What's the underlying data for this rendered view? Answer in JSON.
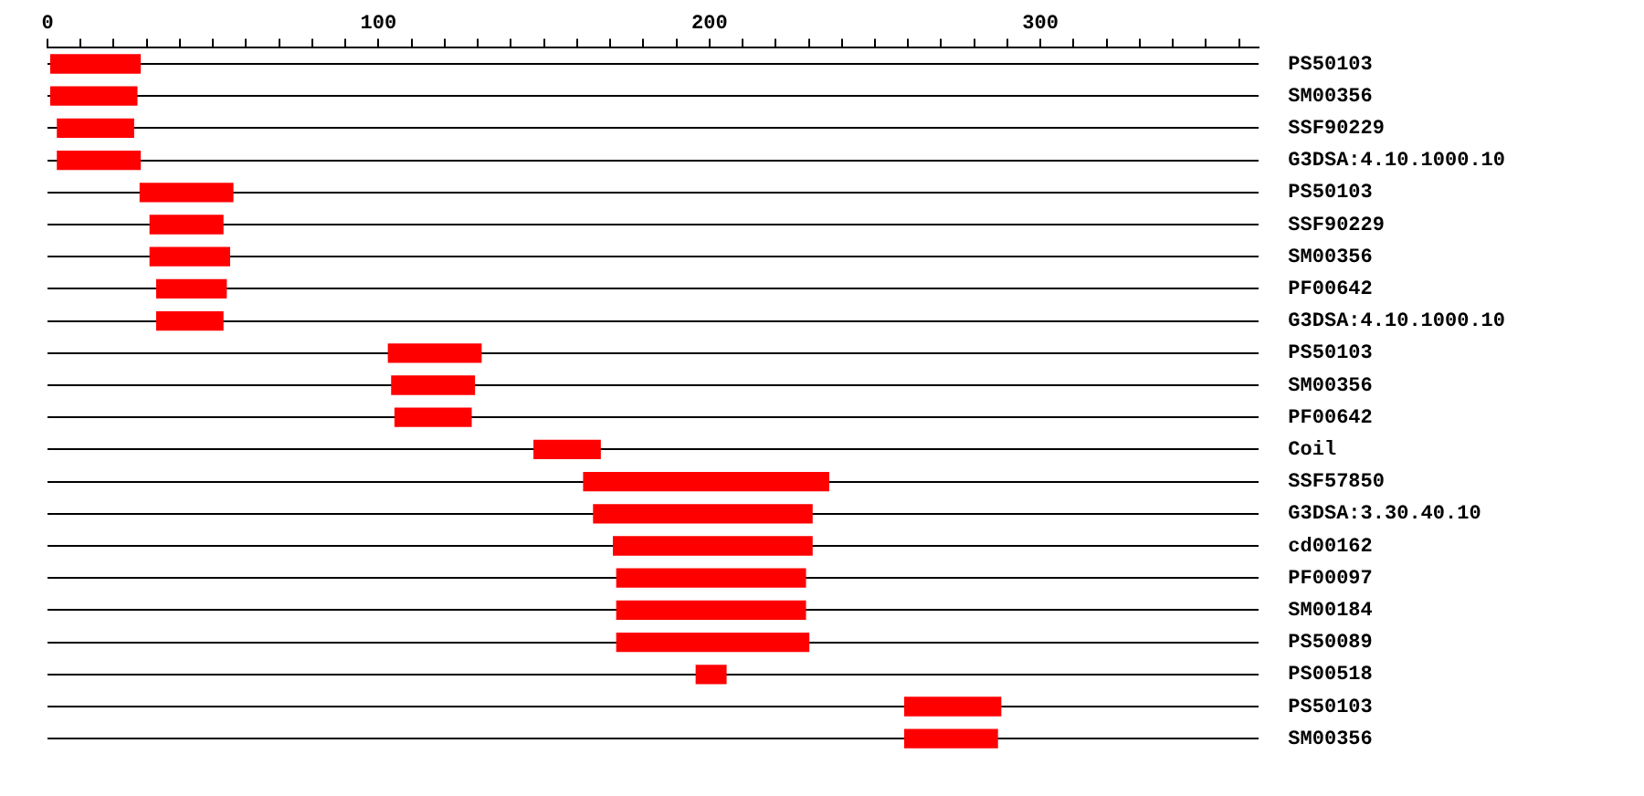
{
  "chart_data": {
    "type": "bar",
    "orientation": "horizontal",
    "categories": [
      "PS50103",
      "SM00356",
      "SSF90229",
      "G3DSA:4.10.1000.10",
      "PS50103",
      "SSF90229",
      "SM00356",
      "PF00642",
      "G3DSA:4.10.1000.10",
      "PS50103",
      "SM00356",
      "PF00642",
      "Coil",
      "SSF57850",
      "G3DSA:3.30.40.10",
      "cd00162",
      "PF00097",
      "SM00184",
      "PS50089",
      "PS00518",
      "PS50103",
      "SM00356"
    ],
    "base": [
      1,
      1,
      3,
      3,
      28,
      31,
      31,
      33,
      33,
      103,
      104,
      105,
      147,
      162,
      165,
      171,
      172,
      172,
      172,
      196,
      259,
      259
    ],
    "values": [
      27,
      26,
      23,
      25,
      28,
      22,
      24,
      21,
      20,
      28,
      25,
      23,
      20,
      74,
      66,
      60,
      57,
      57,
      58,
      9,
      29,
      28
    ],
    "color": "#ff0000",
    "xlim": [
      0,
      366
    ],
    "xticks": [
      0,
      {
        "value": 10,
        "label": null
      },
      {
        "value": 20,
        "label": null
      },
      {
        "value": 30,
        "label": null
      },
      {
        "value": 40,
        "label": null
      },
      {
        "value": 50,
        "label": null
      },
      {
        "value": 60,
        "label": null
      },
      {
        "value": 70,
        "label": null
      },
      {
        "value": 80,
        "label": null
      },
      {
        "value": 90,
        "label": null
      },
      100,
      {
        "value": 110,
        "label": null
      },
      {
        "value": 120,
        "label": null
      },
      {
        "value": 130,
        "label": null
      },
      {
        "value": 140,
        "label": null
      },
      {
        "value": 150,
        "label": null
      },
      {
        "value": 160,
        "label": null
      },
      {
        "value": 170,
        "label": null
      },
      {
        "value": 180,
        "label": null
      },
      {
        "value": 190,
        "label": null
      },
      200,
      {
        "value": 210,
        "label": null
      },
      {
        "value": 220,
        "label": null
      },
      {
        "value": 230,
        "label": null
      },
      {
        "value": 240,
        "label": null
      },
      {
        "value": 250,
        "label": null
      },
      {
        "value": 260,
        "label": null
      },
      {
        "value": 270,
        "label": null
      },
      {
        "value": 280,
        "label": null
      },
      {
        "value": 290,
        "label": null
      },
      300,
      {
        "value": 310,
        "label": null
      },
      {
        "value": 320,
        "label": null
      },
      {
        "value": 330,
        "label": null
      },
      {
        "value": 340,
        "label": null
      },
      {
        "value": 350,
        "label": null
      },
      {
        "value": 360,
        "label": null
      }
    ],
    "grid": "y",
    "legend": false
  }
}
